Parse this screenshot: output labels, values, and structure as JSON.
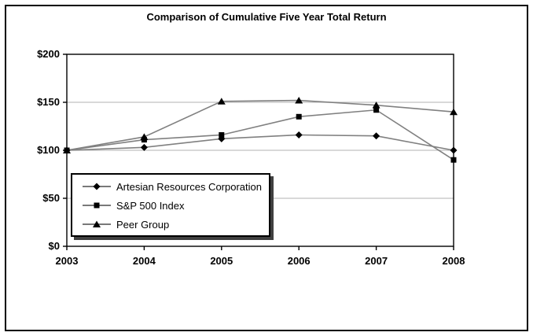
{
  "window": {
    "background_color": "#ffffff",
    "frame_border_color": "#000000"
  },
  "chart_data": {
    "type": "line",
    "title": "Comparison of Cumulative Five Year Total Return",
    "x": [
      "2003",
      "2004",
      "2005",
      "2006",
      "2007",
      "2008"
    ],
    "series": [
      {
        "name": "Artesian Resources Corporation",
        "marker": "diamond",
        "values": [
          100,
          103,
          112,
          116,
          115,
          100
        ]
      },
      {
        "name": "S&P 500 Index",
        "marker": "square",
        "values": [
          100,
          111,
          116,
          135,
          142,
          90
        ]
      },
      {
        "name": "Peer Group",
        "marker": "triangle",
        "values": [
          100,
          114,
          151,
          152,
          147,
          140
        ]
      }
    ],
    "ylim": [
      0,
      200
    ],
    "y_ticks": [
      0,
      50,
      100,
      150,
      200
    ],
    "y_tick_labels": [
      "$0",
      "$50",
      "$100",
      "$150",
      "$200"
    ],
    "xlabel": "",
    "ylabel": "",
    "grid": "horizontal",
    "legend_position": "inside-lower-left",
    "line_color": "#808080",
    "grid_color": "#c0c0c0",
    "axis_color": "#000000",
    "marker_color": "#000000"
  }
}
